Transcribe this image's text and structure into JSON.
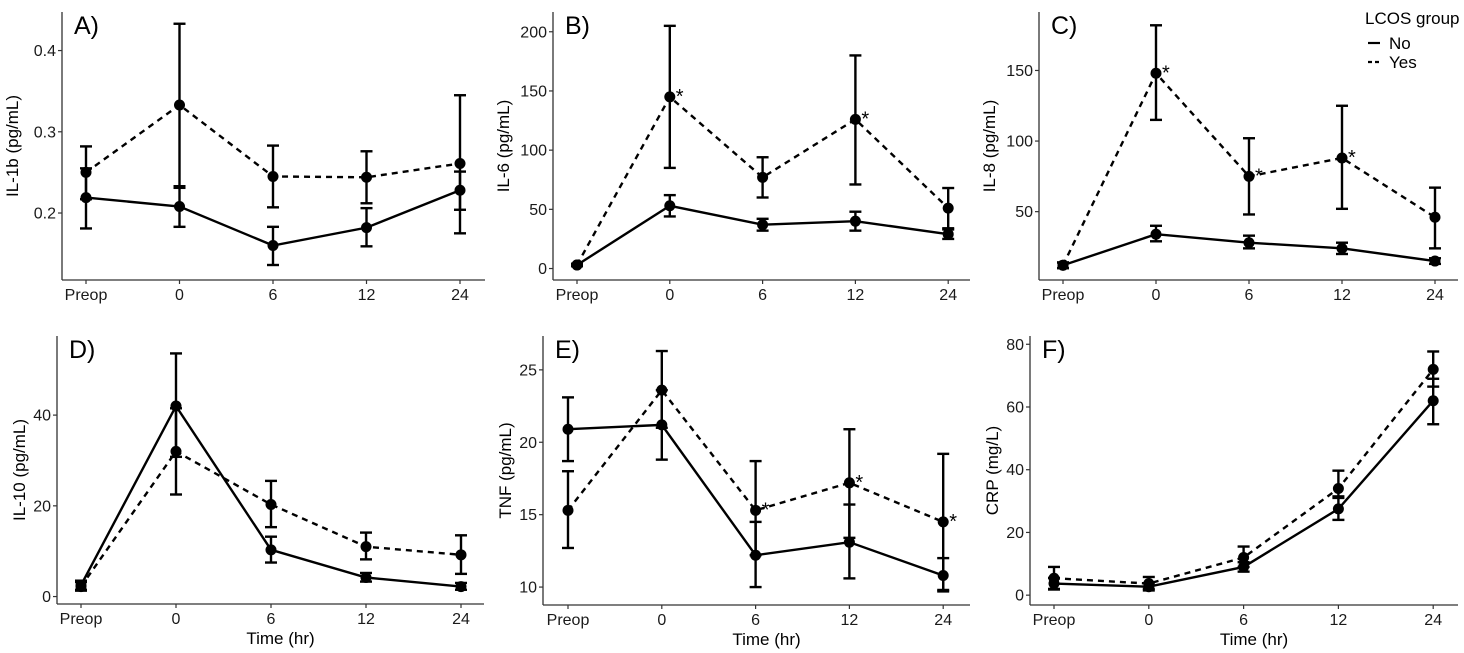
{
  "chart_data": {
    "type": "line",
    "categories": [
      "Preop",
      "0",
      "6",
      "12",
      "24"
    ],
    "xlabel": "Time (hr)",
    "legend": {
      "title": "LCOS group",
      "placement": "top-right",
      "entries": [
        {
          "name": "No",
          "linestyle": "solid"
        },
        {
          "name": "Yes",
          "linestyle": "dashed"
        }
      ]
    },
    "panels": [
      {
        "label": "A)",
        "ylabel": "IL-1b (pg/mL)",
        "ylim": [
          0.12,
          0.445
        ],
        "yticks": [
          0.2,
          0.3,
          0.4
        ],
        "ytick_labels": [
          "0.2",
          "0.3",
          "0.4"
        ],
        "show_xlabel": false,
        "series": [
          {
            "name": "No",
            "values": [
              0.219,
              0.208,
              0.16,
              0.182,
              0.228
            ],
            "lower": [
              0.181,
              0.183,
              0.136,
              0.159,
              0.204
            ],
            "upper": [
              0.255,
              0.231,
              0.183,
              0.206,
              0.251
            ]
          },
          {
            "name": "Yes",
            "values": [
              0.25,
              0.333,
              0.245,
              0.244,
              0.261
            ],
            "lower": [
              0.217,
              0.233,
              0.207,
              0.212,
              0.175
            ],
            "upper": [
              0.282,
              0.433,
              0.283,
              0.276,
              0.345
            ]
          }
        ],
        "significant": []
      },
      {
        "label": "B)",
        "ylabel": "IL-6 (pg/mL)",
        "ylim": [
          -8,
          215
        ],
        "yticks": [
          0,
          50,
          100,
          150,
          200
        ],
        "ytick_labels": [
          "0",
          "50",
          "100",
          "150",
          "200"
        ],
        "show_xlabel": false,
        "series": [
          {
            "name": "No",
            "values": [
              3,
              53,
              37,
              40,
              29
            ],
            "lower": [
              2,
              44,
              32,
              32,
              25
            ],
            "upper": [
              4,
              62,
              42,
              48,
              34
            ]
          },
          {
            "name": "Yes",
            "values": [
              3,
              145,
              77,
              126,
              51
            ],
            "lower": [
              2,
              85,
              60,
              71,
              33
            ],
            "upper": [
              4,
              205,
              94,
              180,
              68
            ]
          }
        ],
        "significant": [
          1,
          3
        ]
      },
      {
        "label": "C)",
        "ylabel": "IL-8 (pg/mL)",
        "ylim": [
          3,
          190
        ],
        "yticks": [
          50,
          100,
          150
        ],
        "ytick_labels": [
          "50",
          "100",
          "150"
        ],
        "show_xlabel": false,
        "series": [
          {
            "name": "No",
            "values": [
              12,
              34,
              28,
              24,
              15
            ],
            "lower": [
              10,
              29,
              24,
              20,
              13
            ],
            "upper": [
              14,
              40,
              33,
              28,
              17
            ]
          },
          {
            "name": "Yes",
            "values": [
              12,
              148,
              75,
              88,
              46
            ],
            "lower": [
              10,
              115,
              48,
              52,
              24
            ],
            "upper": [
              14,
              182,
              102,
              125,
              67
            ]
          }
        ],
        "significant": [
          1,
          2,
          3
        ]
      },
      {
        "label": "D)",
        "ylabel": "IL-10 (pg/mL)",
        "ylim": [
          -1.2,
          57
        ],
        "yticks": [
          0,
          20,
          40
        ],
        "ytick_labels": [
          "0",
          "20",
          "40"
        ],
        "show_xlabel": true,
        "series": [
          {
            "name": "No",
            "values": [
              2.5,
              42,
              10.3,
              4.2,
              2.2
            ],
            "lower": [
              1.5,
              30.8,
              7.5,
              3.3,
              1.5
            ],
            "upper": [
              3.5,
              53.6,
              13.2,
              5.2,
              3.0
            ]
          },
          {
            "name": "Yes",
            "values": [
              2.2,
              32,
              20.3,
              11,
              9.2
            ],
            "lower": [
              1.3,
              22.5,
              15.3,
              8.2,
              5.0
            ],
            "upper": [
              3.2,
              41.5,
              25.5,
              14.1,
              13.5
            ]
          }
        ],
        "significant": []
      },
      {
        "label": "E)",
        "ylabel": "TNF (pg/mL)",
        "ylim": [
          8.9,
          27.2
        ],
        "yticks": [
          10,
          15,
          20,
          25
        ],
        "ytick_labels": [
          "10",
          "15",
          "20",
          "25"
        ],
        "show_xlabel": true,
        "series": [
          {
            "name": "No",
            "values": [
              20.9,
              21.2,
              12.2,
              13.1,
              10.8
            ],
            "lower": [
              18.7,
              18.8,
              10.0,
              10.6,
              9.7
            ],
            "upper": [
              23.1,
              23.6,
              14.5,
              15.7,
              12.0
            ]
          },
          {
            "name": "Yes",
            "values": [
              15.3,
              23.6,
              15.3,
              17.2,
              14.5
            ],
            "lower": [
              12.7,
              21.0,
              12.2,
              13.4,
              9.8
            ],
            "upper": [
              18.0,
              26.3,
              18.7,
              20.9,
              19.2
            ]
          }
        ],
        "significant": [
          2,
          3,
          4
        ]
      },
      {
        "label": "F)",
        "ylabel": "CRP (mg/L)",
        "ylim": [
          -2.5,
          82
        ],
        "yticks": [
          0,
          20,
          40,
          60,
          80
        ],
        "ytick_labels": [
          "0",
          "20",
          "40",
          "60",
          "80"
        ],
        "show_xlabel": true,
        "series": [
          {
            "name": "No",
            "values": [
              3.7,
              2.7,
              9.0,
              27.5,
              62
            ],
            "lower": [
              1.8,
              1.5,
              7.5,
              24,
              54.5
            ],
            "upper": [
              5.5,
              3.8,
              10.5,
              31.5,
              69
            ]
          },
          {
            "name": "Yes",
            "values": [
              5.4,
              3.7,
              12,
              34,
              72
            ],
            "lower": [
              2.0,
              2.0,
              9.0,
              31,
              66.5
            ],
            "upper": [
              9.0,
              5.8,
              15.5,
              39.7,
              77.7
            ]
          }
        ],
        "significant": []
      }
    ],
    "significance_marker": "*"
  }
}
